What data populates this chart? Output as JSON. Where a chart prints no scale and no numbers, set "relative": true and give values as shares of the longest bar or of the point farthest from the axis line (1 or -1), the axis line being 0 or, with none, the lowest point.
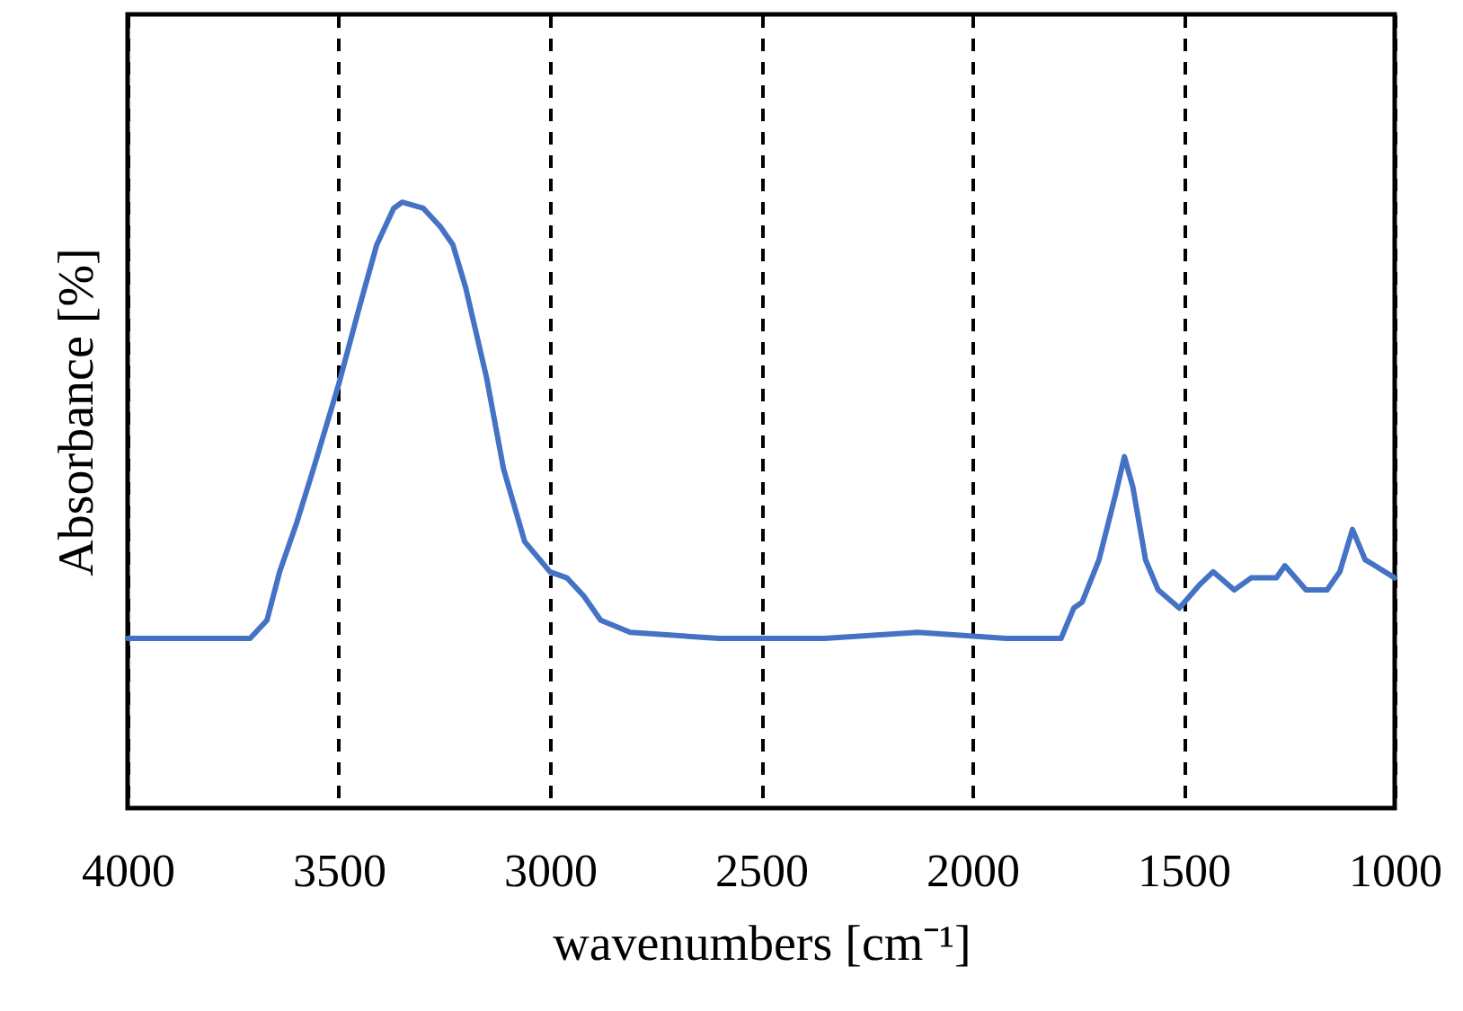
{
  "chart_data": {
    "type": "line",
    "xlabel": "wavenumbers  [cm⁻¹]",
    "ylabel": "Absorbance  [%]",
    "relative": true,
    "xlim": [
      4000,
      1000
    ],
    "xticks": [
      4000,
      3500,
      3000,
      2500,
      2000,
      1500,
      1000
    ],
    "grid": "x",
    "line_style": "solid",
    "marker": "none",
    "series": [
      {
        "color": "#4472c4",
        "x": [
          4000,
          3790,
          3710,
          3670,
          3640,
          3600,
          3560,
          3500,
          3450,
          3410,
          3370,
          3350,
          3300,
          3260,
          3230,
          3200,
          3150,
          3110,
          3060,
          3000,
          2960,
          2920,
          2880,
          2810,
          2600,
          2350,
          2130,
          1920,
          1790,
          1760,
          1740,
          1700,
          1660,
          1640,
          1620,
          1590,
          1560,
          1510,
          1460,
          1430,
          1380,
          1340,
          1280,
          1260,
          1210,
          1160,
          1130,
          1100,
          1070,
          1000
        ],
        "values": [
          0.28,
          0.28,
          0.28,
          0.31,
          0.39,
          0.47,
          0.56,
          0.7,
          0.83,
          0.93,
          0.99,
          1,
          0.99,
          0.96,
          0.93,
          0.86,
          0.71,
          0.56,
          0.44,
          0.39,
          0.38,
          0.35,
          0.31,
          0.29,
          0.28,
          0.28,
          0.29,
          0.28,
          0.28,
          0.33,
          0.34,
          0.41,
          0.52,
          0.58,
          0.53,
          0.41,
          0.36,
          0.33,
          0.37,
          0.39,
          0.36,
          0.38,
          0.38,
          0.4,
          0.36,
          0.36,
          0.39,
          0.46,
          0.41,
          0.38
        ]
      }
    ]
  }
}
